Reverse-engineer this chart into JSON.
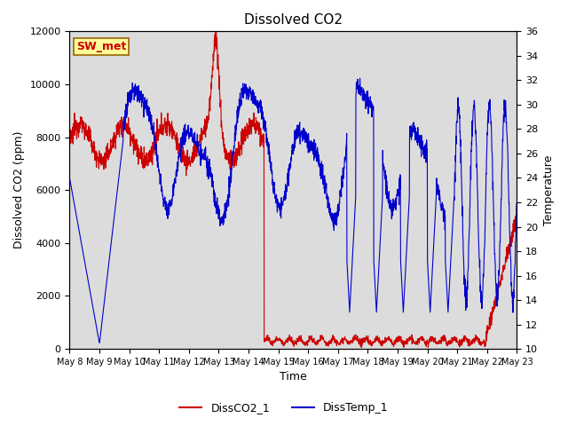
{
  "title": "Dissolved CO2",
  "xlabel": "Time",
  "ylabel_left": "Dissolved CO2 (ppm)",
  "ylabel_right": "Temperature",
  "ylim_left": [
    0,
    12000
  ],
  "ylim_right": [
    10,
    36
  ],
  "yticks_left": [
    0,
    2000,
    4000,
    6000,
    8000,
    10000,
    12000
  ],
  "yticks_right": [
    10,
    12,
    14,
    16,
    18,
    20,
    22,
    24,
    26,
    28,
    30,
    32,
    34,
    36
  ],
  "co2_color": "#cc0000",
  "temp_color": "#0000cc",
  "background_color": "#dcdcdc",
  "legend_co2": "DissCO2_1",
  "legend_temp": "DissTemp_1",
  "box_label": "SW_met",
  "box_facecolor": "#ffff99",
  "box_edgecolor": "#996600",
  "title_fontsize": 11,
  "axis_fontsize": 9,
  "tick_fontsize": 8,
  "legend_fontsize": 9
}
